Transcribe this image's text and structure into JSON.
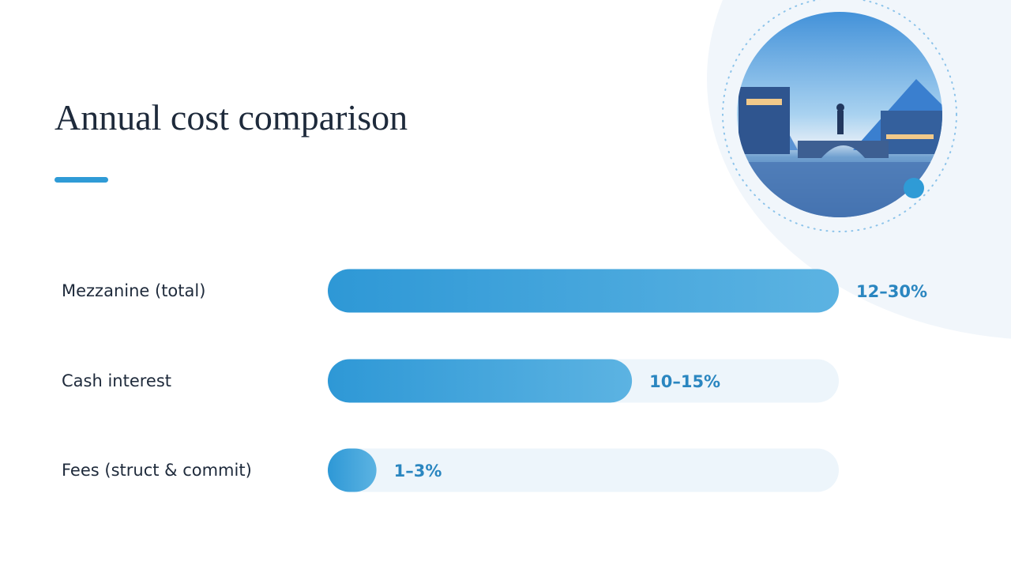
{
  "chart_data": {
    "type": "bar",
    "title": "Annual cost comparison",
    "categories": [
      "Mezzanine (total)",
      "Cash interest",
      "Fees (struct & commit)"
    ],
    "values": [
      [
        12,
        30
      ],
      [
        10,
        15
      ],
      [
        1,
        3
      ]
    ],
    "value_labels": [
      "12–30%",
      "10–15%",
      "1–3%"
    ],
    "xlim": [
      0,
      21
    ],
    "color": "#3aa0da",
    "track_color": "#edf5fb"
  }
}
